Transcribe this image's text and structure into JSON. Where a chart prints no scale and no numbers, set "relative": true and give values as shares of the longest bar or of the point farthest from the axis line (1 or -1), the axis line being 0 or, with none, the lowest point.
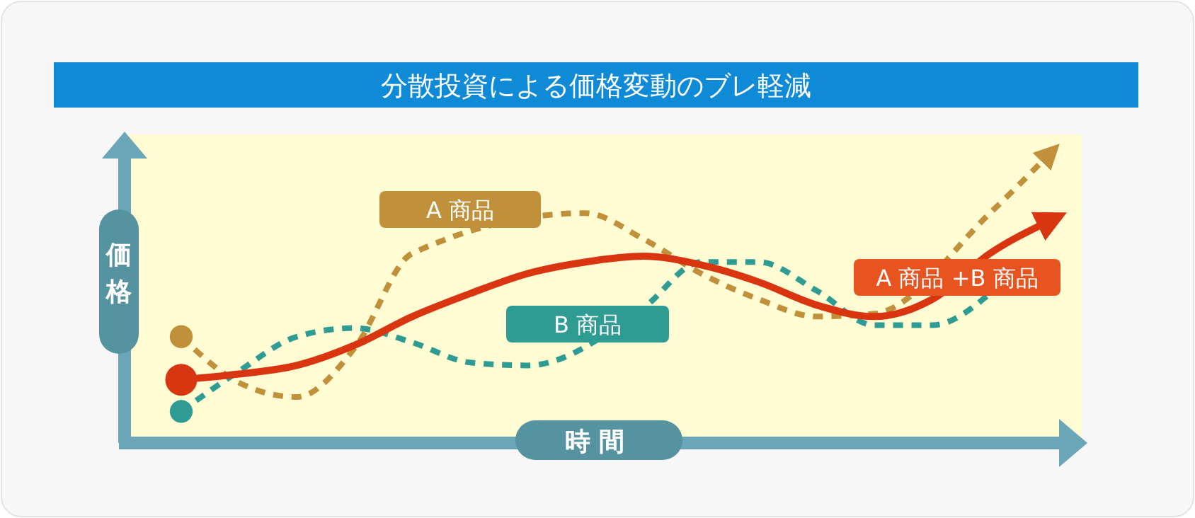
{
  "chart_data": {
    "type": "line",
    "title": "分散投資による価格変動のブレ軽減",
    "xlabel": "時間",
    "ylabel": "価格",
    "relative": true,
    "legend": false,
    "categories": [
      null,
      null,
      null,
      null,
      null,
      null,
      null,
      null,
      null,
      null,
      null,
      null,
      null,
      null,
      null,
      null
    ],
    "series": [
      {
        "name": "A 商品",
        "color": "#c0913a",
        "line_style": "dashed",
        "values": [
          0.37,
          0.21,
          0.16,
          0.33,
          0.66,
          null,
          null,
          0.8,
          0.71,
          0.59,
          0.5,
          0.44,
          0.45,
          null,
          0.8,
          1.0
        ]
      },
      {
        "name": "B 商品",
        "color": "#2f9c94",
        "line_style": "dashed",
        "values": [
          0.11,
          0.25,
          0.37,
          0.4,
          0.35,
          0.28,
          0.27,
          null,
          0.47,
          0.63,
          0.63,
          0.53,
          0.41,
          0.41,
          0.52,
          null
        ]
      },
      {
        "name": "A 商品 +B 商品",
        "color": "#d93510",
        "line_style": "solid",
        "values": [
          0.22,
          0.24,
          0.27,
          0.34,
          0.44,
          0.52,
          0.59,
          0.63,
          0.65,
          0.62,
          0.56,
          0.48,
          0.44,
          0.5,
          0.66,
          0.77
        ]
      }
    ]
  }
}
